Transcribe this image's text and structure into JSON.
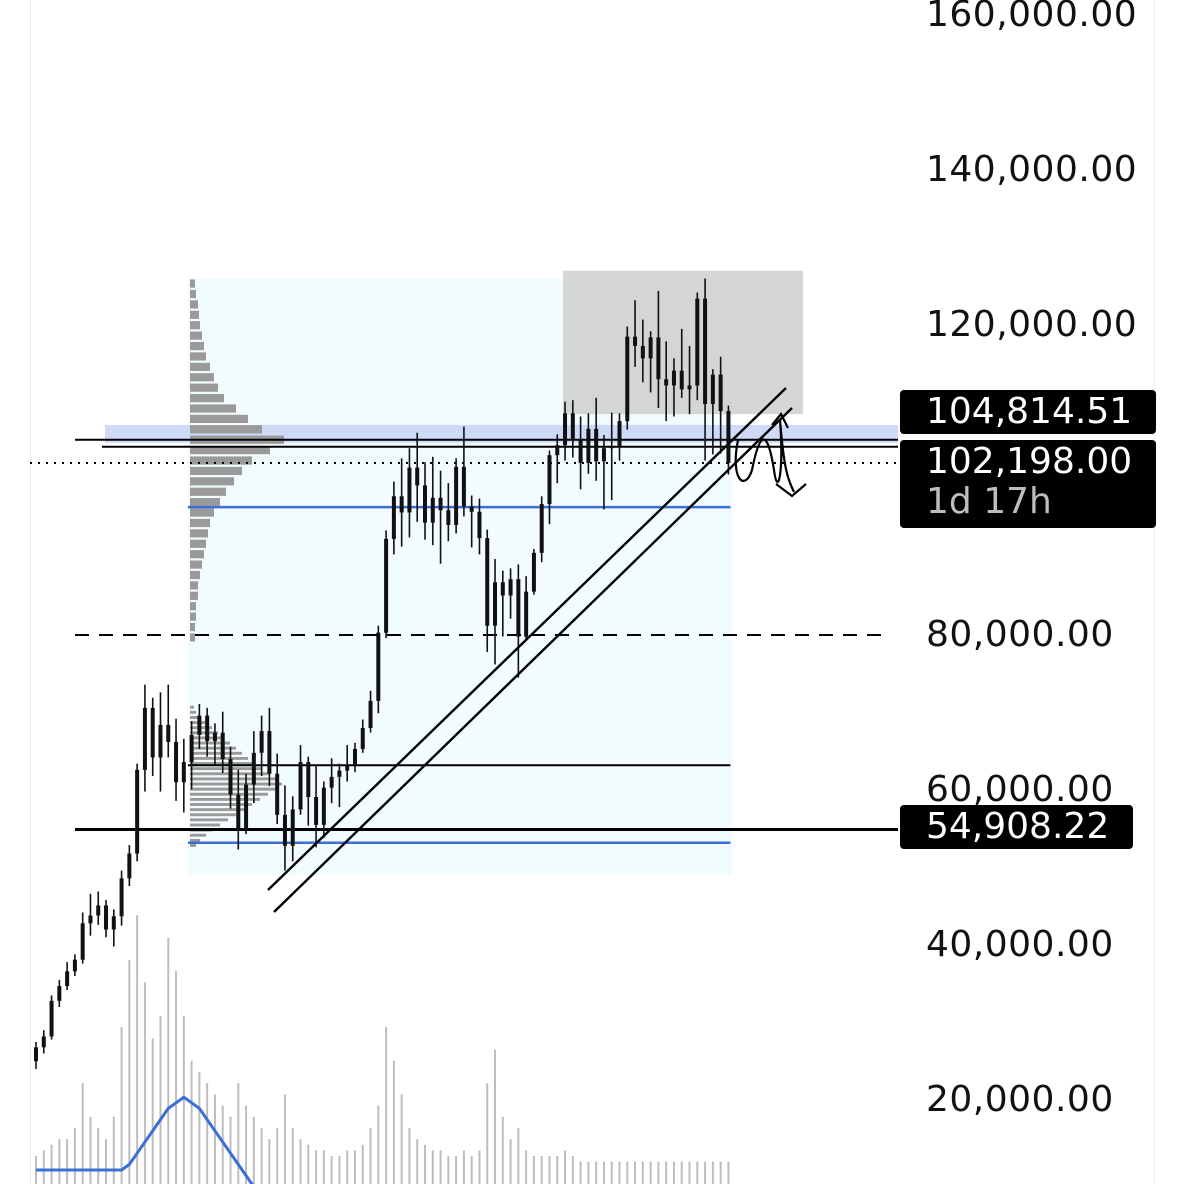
{
  "chart_data": {
    "type": "candlestick",
    "title": "",
    "xlabel": "",
    "ylabel": "",
    "ylim": [
      13000,
      162000
    ],
    "y_ticks": [
      "160,000.00",
      "140,000.00",
      "120,000.00",
      "80,000.00",
      "60,000.00",
      "40,000.00",
      "20,000.00"
    ],
    "y_tick_values": [
      160000,
      140000,
      120000,
      80000,
      60000,
      40000,
      20000
    ],
    "candles": [
      [
        25000,
        27500,
        24000,
        26800
      ],
      [
        26800,
        29000,
        26000,
        28200
      ],
      [
        28200,
        33500,
        27800,
        32800
      ],
      [
        32800,
        35500,
        32000,
        34700
      ],
      [
        34700,
        37800,
        34200,
        36600
      ],
      [
        36600,
        38800,
        36000,
        38100
      ],
      [
        38100,
        44200,
        37600,
        42800
      ],
      [
        42800,
        46600,
        41200,
        43800
      ],
      [
        43800,
        46900,
        42600,
        45100
      ],
      [
        45100,
        45800,
        41000,
        42000
      ],
      [
        42000,
        44600,
        39800,
        43700
      ],
      [
        43700,
        49600,
        42500,
        48600
      ],
      [
        48600,
        52900,
        47600,
        51800
      ],
      [
        51800,
        63400,
        50800,
        62600
      ],
      [
        62600,
        73600,
        59800,
        70600
      ],
      [
        70600,
        71900,
        61800,
        64200
      ],
      [
        64200,
        72600,
        59800,
        68400
      ],
      [
        68400,
        73600,
        64200,
        66200
      ],
      [
        66200,
        69200,
        58600,
        61000
      ],
      [
        61000,
        66600,
        57100,
        63600
      ],
      [
        63600,
        68900,
        60100,
        67100
      ],
      [
        67100,
        71100,
        65300,
        69600
      ],
      [
        69600,
        70600,
        64300,
        66300
      ],
      [
        66300,
        68600,
        63200,
        67400
      ],
      [
        67400,
        70100,
        62200,
        64000
      ],
      [
        64000,
        65600,
        57600,
        59400
      ],
      [
        59400,
        62600,
        52300,
        54900
      ],
      [
        54900,
        62100,
        54300,
        60700
      ],
      [
        60700,
        67600,
        58300,
        64800
      ],
      [
        64800,
        69600,
        61800,
        67600
      ],
      [
        67600,
        70600,
        60500,
        62100
      ],
      [
        62100,
        64700,
        55600,
        56800
      ],
      [
        56800,
        60600,
        49600,
        52800
      ],
      [
        52800,
        59200,
        50800,
        57500
      ],
      [
        57500,
        65800,
        56800,
        63600
      ],
      [
        63600,
        64300,
        55400,
        59100
      ],
      [
        59100,
        63100,
        52600,
        55500
      ],
      [
        55500,
        61100,
        53800,
        60300
      ],
      [
        60300,
        64100,
        58300,
        61700
      ],
      [
        61700,
        63400,
        57800,
        62500
      ],
      [
        62500,
        65800,
        61100,
        63300
      ],
      [
        63300,
        66100,
        62300,
        65300
      ],
      [
        65300,
        69100,
        64800,
        68000
      ],
      [
        68000,
        72800,
        67400,
        71500
      ],
      [
        71500,
        81200,
        69900,
        80300
      ],
      [
        80300,
        93500,
        79600,
        92400
      ],
      [
        92400,
        99800,
        90400,
        97900
      ],
      [
        97900,
        102800,
        91400,
        95800
      ],
      [
        95800,
        104100,
        92600,
        101600
      ],
      [
        101600,
        106100,
        94600,
        99300
      ],
      [
        99300,
        102300,
        92300,
        94500
      ],
      [
        94500,
        103000,
        91600,
        97700
      ],
      [
        97700,
        101200,
        89200,
        96100
      ],
      [
        96100,
        99600,
        92100,
        94200
      ],
      [
        94200,
        102800,
        93100,
        101700
      ],
      [
        101700,
        106900,
        95300,
        96600
      ],
      [
        96600,
        98000,
        91300,
        95900
      ],
      [
        95900,
        97600,
        90400,
        92500
      ],
      [
        92500,
        93600,
        77800,
        81200
      ],
      [
        81200,
        89800,
        76200,
        86800
      ],
      [
        86800,
        88300,
        79800,
        85100
      ],
      [
        85100,
        88600,
        82100,
        87200
      ],
      [
        87200,
        89100,
        74500,
        79800
      ],
      [
        79800,
        87600,
        79300,
        85600
      ],
      [
        85600,
        91100,
        85200,
        90600
      ],
      [
        90600,
        97900,
        89400,
        96900
      ],
      [
        96900,
        103800,
        94300,
        103200
      ],
      [
        103200,
        105900,
        99600,
        104500
      ],
      [
        104500,
        110100,
        102500,
        108600
      ],
      [
        108600,
        110300,
        102900,
        105300
      ],
      [
        105300,
        108200,
        98800,
        102200
      ],
      [
        102200,
        108600,
        100800,
        106600
      ],
      [
        106600,
        110600,
        99900,
        102400
      ],
      [
        102400,
        105800,
        96200,
        104100
      ],
      [
        104100,
        108700,
        97400,
        104300
      ],
      [
        104300,
        108600,
        102500,
        107600
      ],
      [
        107600,
        119800,
        106500,
        118500
      ],
      [
        118500,
        123200,
        114600,
        117300
      ],
      [
        117300,
        120700,
        112600,
        115700
      ],
      [
        115700,
        119200,
        111300,
        118400
      ],
      [
        118400,
        124400,
        109300,
        113000
      ],
      [
        113000,
        117900,
        107600,
        112200
      ],
      [
        112200,
        115700,
        108200,
        114100
      ],
      [
        114100,
        119500,
        110600,
        111700
      ],
      [
        111700,
        117300,
        108500,
        112200
      ],
      [
        112200,
        124200,
        110300,
        123400
      ],
      [
        123400,
        126000,
        102500,
        109800
      ],
      [
        109800,
        114300,
        103300,
        113600
      ],
      [
        113600,
        115900,
        103400,
        108900
      ],
      [
        108900,
        109600,
        100700,
        102200
      ]
    ],
    "volume_rel": [
      0.05,
      0.06,
      0.07,
      0.08,
      0.08,
      0.1,
      0.18,
      0.12,
      0.1,
      0.08,
      0.12,
      0.28,
      0.4,
      0.48,
      0.36,
      0.26,
      0.3,
      0.44,
      0.38,
      0.3,
      0.22,
      0.2,
      0.18,
      0.16,
      0.14,
      0.12,
      0.18,
      0.14,
      0.12,
      0.1,
      0.08,
      0.1,
      0.16,
      0.1,
      0.08,
      0.07,
      0.06,
      0.06,
      0.05,
      0.05,
      0.06,
      0.06,
      0.07,
      0.1,
      0.14,
      0.28,
      0.22,
      0.16,
      0.1,
      0.08,
      0.07,
      0.06,
      0.06,
      0.05,
      0.05,
      0.06,
      0.05,
      0.06,
      0.18,
      0.24,
      0.12,
      0.08,
      0.1,
      0.06,
      0.05,
      0.05,
      0.05,
      0.05,
      0.06,
      0.05,
      0.04,
      0.04,
      0.04,
      0.04,
      0.04,
      0.04,
      0.04,
      0.04,
      0.04,
      0.04,
      0.04,
      0.04,
      0.04,
      0.04,
      0.04,
      0.04,
      0.04,
      0.04,
      0.04,
      0.04
    ],
    "volume_ma_rel": [
      0.05,
      0.05,
      0.05,
      0.05,
      0.05,
      0.05,
      0.05,
      0.05,
      0.05,
      0.05,
      0.05,
      0.05,
      0.06,
      0.08,
      0.1,
      0.12,
      0.14,
      0.16,
      0.17,
      0.18,
      0.17,
      0.16,
      0.14,
      0.12,
      0.1,
      0.08,
      0.06,
      0.04,
      0.02,
      0.0,
      -0.02,
      -0.03,
      -0.04,
      -0.05,
      -0.05,
      -0.05,
      -0.05,
      -0.05,
      -0.05,
      -0.05,
      -0.05,
      -0.05,
      -0.05,
      -0.05,
      -0.05,
      -0.05,
      -0.05,
      -0.05,
      -0.05,
      -0.05,
      -0.05,
      -0.05,
      -0.05,
      -0.05,
      -0.05,
      -0.05,
      -0.05,
      -0.03,
      0.01,
      0.02,
      0.01,
      -0.02,
      -0.05,
      -0.05,
      -0.05,
      -0.05,
      -0.05,
      -0.05,
      -0.05,
      -0.05,
      -0.05,
      -0.05,
      -0.05,
      -0.05,
      -0.05,
      -0.05,
      -0.05,
      -0.05,
      -0.05,
      -0.05,
      -0.05,
      -0.05,
      -0.05,
      -0.05,
      -0.05,
      -0.05,
      -0.05,
      -0.05,
      -0.05,
      -0.05
    ],
    "volume_profile_upper": [
      0.05,
      0.06,
      0.08,
      0.09,
      0.1,
      0.12,
      0.14,
      0.16,
      0.2,
      0.24,
      0.28,
      0.34,
      0.46,
      0.58,
      0.72,
      0.94,
      0.8,
      0.62,
      0.52,
      0.44,
      0.36,
      0.3,
      0.24,
      0.2,
      0.18,
      0.16,
      0.14,
      0.12,
      0.1,
      0.08,
      0.08,
      0.06,
      0.06,
      0.05,
      0.05
    ],
    "volume_profile_lower": [
      0.04,
      0.06,
      0.1,
      0.16,
      0.22,
      0.28,
      0.34,
      0.4,
      0.46,
      0.52,
      0.58,
      0.64,
      0.72,
      0.8,
      0.86,
      0.92,
      0.86,
      0.78,
      0.7,
      0.62,
      0.54,
      0.46,
      0.38,
      0.3,
      0.22,
      0.16,
      0.1,
      0.06
    ],
    "horizontal_levels": [
      {
        "value": 104814.51,
        "style": "solid-double",
        "color": "#000000"
      },
      {
        "value": 102198.0,
        "style": "dotted",
        "color": "#000000"
      },
      {
        "value": 96500,
        "style": "solid",
        "color": "#3a6fd8"
      },
      {
        "value": 80000,
        "style": "dashed",
        "color": "#000000"
      },
      {
        "value": 63200,
        "style": "solid",
        "color": "#000000"
      },
      {
        "value": 54908.22,
        "style": "solid",
        "color": "#000000"
      },
      {
        "value": 53200,
        "style": "solid",
        "color": "#3a6fd8"
      }
    ],
    "supply_zone": {
      "y_low": 108500,
      "y_high": 127000,
      "color": "#cfcfcf"
    },
    "value_area_band": {
      "y_low": 104800,
      "y_high": 107100,
      "color": "#c9d6f7"
    },
    "price_tags": [
      {
        "value": "104,814.51",
        "sub": ""
      },
      {
        "value": "102,198.00",
        "sub": "1d 17h"
      },
      {
        "value": "54,908.22",
        "sub": ""
      }
    ],
    "colors": {
      "candle": "#111111",
      "volume_bar": "#bdbdbd",
      "volume_ma": "#3a6fd8",
      "profile": "#9a9a9a",
      "range_box": "#f2fbfd"
    }
  }
}
